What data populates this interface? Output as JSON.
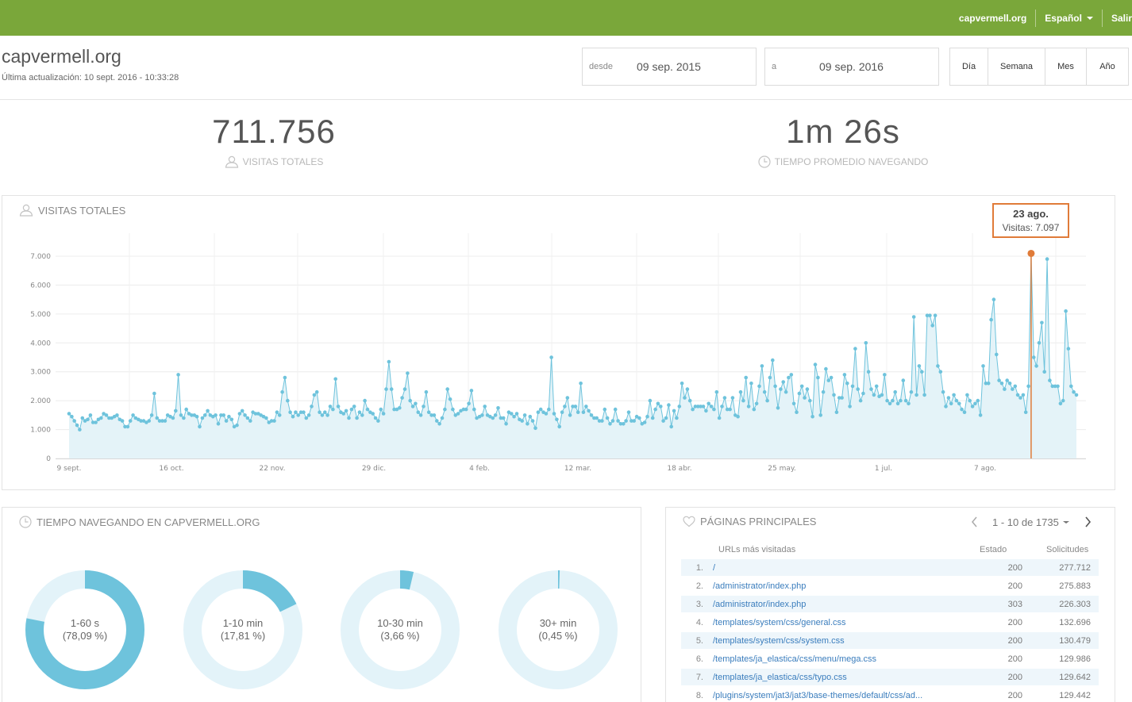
{
  "topbar": {
    "site_link": "capvermell.org",
    "language": "Español",
    "logout": "Salir"
  },
  "header": {
    "title": "capvermell.org",
    "last_update": "Última actualización: 10 sept. 2016 - 10:33:28",
    "from_label": "desde",
    "from_value": "09 sep. 2015",
    "to_label": "a",
    "to_value": "09 sep. 2016",
    "periods": [
      "Día",
      "Semana",
      "Mes",
      "Año"
    ]
  },
  "kpis": {
    "visits_value": "711.756",
    "visits_label": "VISITAS TOTALES",
    "avg_time_value": "1m 26s",
    "avg_time_label": "TIEMPO PROMEDIO NAVEGANDO"
  },
  "visits_panel": {
    "title": "VISITAS TOTALES",
    "tooltip_date": "23 ago.",
    "tooltip_value": "Visitas: 7.097"
  },
  "chart_data": {
    "type": "area",
    "title": "VISITAS TOTALES",
    "y_ticks": [
      "0",
      "1.000",
      "2.000",
      "3.000",
      "4.000",
      "5.000",
      "6.000",
      "7.000"
    ],
    "ylim": [
      0,
      7000
    ],
    "x_tick_labels": [
      "9 sept.",
      "16 oct.",
      "22 nov.",
      "29 dic.",
      "4 feb.",
      "12 mar.",
      "18 abr.",
      "25 may.",
      "1 jul.",
      "7 ago."
    ],
    "x_range_days": 366,
    "grid": true,
    "highlight": {
      "label": "23 ago.",
      "value": 7097
    },
    "color": "#6ec3dc",
    "highlight_color": "#e07b39",
    "values": [
      1550,
      1450,
      1300,
      1150,
      1000,
      1400,
      1300,
      1350,
      1500,
      1250,
      1250,
      1350,
      1400,
      1550,
      1500,
      1400,
      1400,
      1450,
      1500,
      1350,
      1300,
      1100,
      1100,
      1300,
      1500,
      1400,
      1350,
      1300,
      1300,
      1250,
      1300,
      1500,
      2250,
      1400,
      1300,
      1300,
      1300,
      1500,
      1450,
      1400,
      1650,
      2900,
      1500,
      1400,
      1700,
      1550,
      1500,
      1500,
      1450,
      1100,
      1400,
      1500,
      1650,
      1500,
      1450,
      1500,
      1200,
      1500,
      1500,
      1300,
      1450,
      1350,
      1100,
      1150,
      1550,
      1650,
      1500,
      1400,
      1300,
      1600,
      1550,
      1550,
      1500,
      1450,
      1400,
      1250,
      1300,
      1300,
      1600,
      1500,
      2300,
      2800,
      2000,
      1600,
      1450,
      1600,
      1500,
      1600,
      1600,
      1400,
      1500,
      1800,
      2200,
      2300,
      1600,
      1500,
      1600,
      1500,
      1800,
      1700,
      2750,
      1800,
      1600,
      1550,
      1650,
      1400,
      1700,
      1800,
      1400,
      1600,
      1500,
      2000,
      1700,
      1600,
      1550,
      1400,
      1300,
      1700,
      1550,
      2400,
      3350,
      2400,
      1700,
      1700,
      1750,
      2100,
      2400,
      2950,
      2000,
      1800,
      1900,
      1600,
      1500,
      1800,
      2300,
      1600,
      1500,
      1500,
      1300,
      1200,
      1400,
      1700,
      2400,
      2050,
      1700,
      1500,
      1550,
      1650,
      1700,
      1700,
      1900,
      2350,
      1700,
      1400,
      1450,
      1500,
      1800,
      1500,
      1450,
      1400,
      1500,
      1750,
      1400,
      1400,
      1200,
      1600,
      1550,
      1450,
      1550,
      1350,
      1300,
      1500,
      1200,
      1450,
      1300,
      1050,
      1600,
      1700,
      1600,
      1550,
      1700,
      3500,
      1550,
      1350,
      1100,
      1600,
      1800,
      2100,
      1500,
      1800,
      1800,
      1600,
      2600,
      1600,
      1800,
      1650,
      1500,
      1400,
      1400,
      1300,
      1300,
      1700,
      1400,
      1200,
      1300,
      1700,
      1300,
      1200,
      1200,
      1300,
      1600,
      1300,
      1300,
      1450,
      1400,
      1200,
      1250,
      1450,
      2000,
      1400,
      1700,
      1900,
      1800,
      1300,
      1400,
      1850,
      1100,
      1650,
      1400,
      1800,
      2600,
      2100,
      2400,
      2000,
      1700,
      1800,
      1800,
      1800,
      1800,
      1650,
      1900,
      1800,
      1700,
      2300,
      1400,
      1800,
      2100,
      1700,
      1700,
      2100,
      1500,
      1450,
      2300,
      2000,
      2800,
      1800,
      2600,
      1700,
      1900,
      2500,
      3200,
      2300,
      2000,
      2800,
      3400,
      2500,
      1750,
      2400,
      2650,
      2300,
      2800,
      2900,
      1900,
      1600,
      2250,
      2500,
      2100,
      2400,
      2000,
      1450,
      3250,
      2800,
      1500,
      2300,
      3100,
      2700,
      2800,
      2200,
      1600,
      2100,
      2100,
      2900,
      2600,
      1800,
      2500,
      3800,
      2400,
      2000,
      2250,
      4000,
      3000,
      2400,
      2200,
      2500,
      2150,
      2200,
      2900,
      2000,
      1900,
      2000,
      2300,
      1900,
      2000,
      2700,
      2000,
      1900,
      2300,
      4900,
      2200,
      3200,
      3000,
      2200,
      4950,
      4950,
      4600,
      4950,
      3200,
      3000,
      2300,
      1800,
      2100,
      1900,
      2200,
      2000,
      1900,
      1700,
      1600,
      2200,
      2000,
      1800,
      1900,
      2000,
      1500,
      3200,
      2600,
      2600,
      4800,
      5500,
      3600,
      2700,
      2600,
      2400,
      2700,
      2600,
      2400,
      2500,
      2200,
      2100,
      2200,
      1600,
      2500,
      7097,
      3500,
      3200,
      4000,
      4700,
      3000,
      6900,
      2700,
      2500,
      2500,
      2500,
      1900,
      2000,
      5100,
      3800,
      2500,
      2300,
      2200
    ]
  },
  "time_panel": {
    "title": "TIEMPO NAVEGANDO EN CAPVERMELL.ORG",
    "donuts": [
      {
        "label": "1-60 s",
        "pct": "(78,09 %)",
        "value": 78.09
      },
      {
        "label": "1-10 min",
        "pct": "(17,81 %)",
        "value": 17.81
      },
      {
        "label": "10-30 min",
        "pct": "(3,66 %)",
        "value": 3.66
      },
      {
        "label": "30+ min",
        "pct": "(0,45 %)",
        "value": 0.45
      }
    ]
  },
  "pages_panel": {
    "title": "PÁGINAS PRINCIPALES",
    "pager": "1 - 10 de 1735",
    "col_url": "URLs más visitadas",
    "col_status": "Estado",
    "col_requests": "Solicitudes",
    "rows": [
      {
        "idx": "1.",
        "url": "/",
        "status": "200",
        "requests": "277.712"
      },
      {
        "idx": "2.",
        "url": "/administrator/index.php",
        "status": "200",
        "requests": "275.883"
      },
      {
        "idx": "3.",
        "url": "/administrator/index.php",
        "status": "303",
        "requests": "226.303"
      },
      {
        "idx": "4.",
        "url": "/templates/system/css/general.css",
        "status": "200",
        "requests": "132.696"
      },
      {
        "idx": "5.",
        "url": "/templates/system/css/system.css",
        "status": "200",
        "requests": "130.479"
      },
      {
        "idx": "6.",
        "url": "/templates/ja_elastica/css/menu/mega.css",
        "status": "200",
        "requests": "129.986"
      },
      {
        "idx": "7.",
        "url": "/templates/ja_elastica/css/typo.css",
        "status": "200",
        "requests": "129.642"
      },
      {
        "idx": "8.",
        "url": "/plugins/system/jat3/jat3/base-themes/default/css/ad...",
        "status": "200",
        "requests": "129.442"
      }
    ]
  }
}
